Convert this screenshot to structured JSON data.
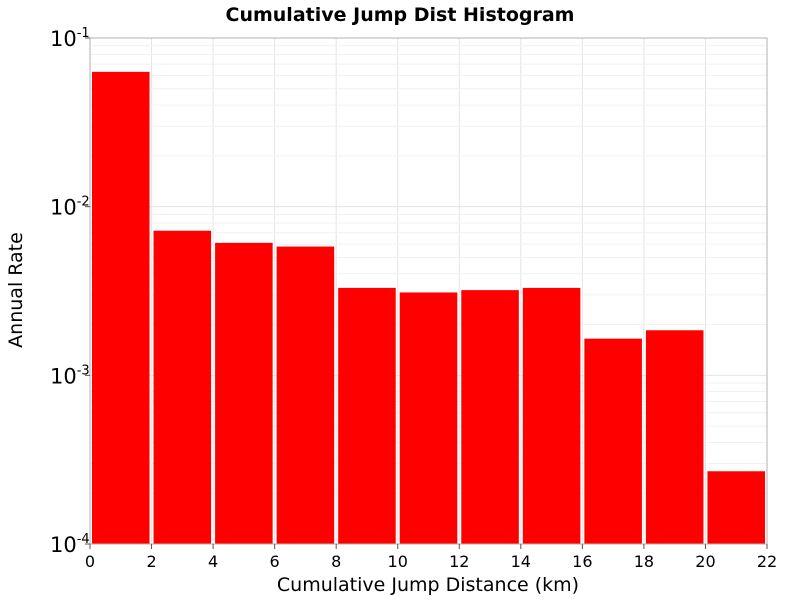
{
  "chart_data": {
    "type": "bar",
    "title": "Cumulative Jump Dist Histogram",
    "xlabel": "Cumulative Jump Distance (km)",
    "ylabel": "Annual Rate",
    "xlim": [
      0,
      22
    ],
    "ylim": [
      0.0001,
      0.1
    ],
    "yscale": "log",
    "grid": true,
    "bar_color": "#ff0000",
    "bin_width": 2,
    "x_ticks": [
      "0",
      "2",
      "4",
      "6",
      "8",
      "10",
      "12",
      "14",
      "16",
      "18",
      "20",
      "22"
    ],
    "y_ticks": [
      {
        "base": "10",
        "exp": "-1",
        "value": 0.1
      },
      {
        "base": "10",
        "exp": "-2",
        "value": 0.01
      },
      {
        "base": "10",
        "exp": "-3",
        "value": 0.001
      },
      {
        "base": "10",
        "exp": "-4",
        "value": 0.0001
      }
    ],
    "bins": [
      0,
      2,
      4,
      6,
      8,
      10,
      12,
      14,
      16,
      18,
      20
    ],
    "values": [
      0.063,
      0.0072,
      0.0061,
      0.0058,
      0.0033,
      0.0031,
      0.0032,
      0.0033,
      0.00165,
      0.00185,
      0.00027
    ]
  }
}
